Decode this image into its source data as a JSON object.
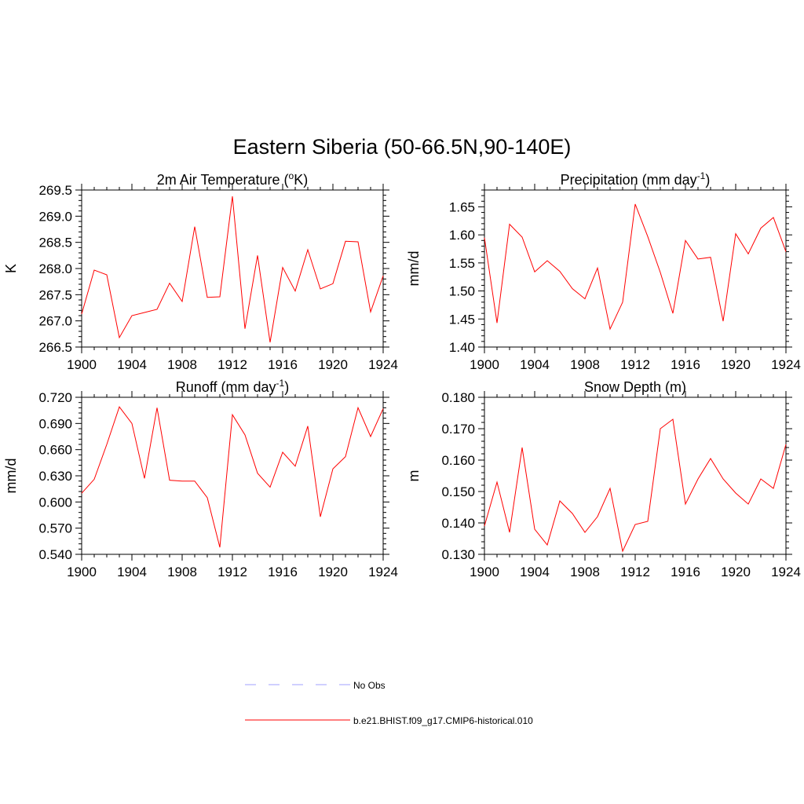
{
  "title": "Eastern Siberia (50-66.5N,90-140E)",
  "colors": {
    "model": "#ff0000",
    "obs": "#a0a0ff"
  },
  "legend": [
    {
      "label": "No Obs",
      "style": "dashed",
      "color": "#a0a0ff"
    },
    {
      "label": "b.e21.BHIST.f09_g17.CMIP6-historical.010",
      "style": "solid",
      "color": "#ff0000"
    }
  ],
  "chart_data": [
    {
      "type": "line",
      "title_main": "2m Air Temperature (",
      "title_sup": "o",
      "title_end": "K)",
      "ylabel": "K",
      "xlim": [
        1900,
        1924
      ],
      "ylim": [
        266.5,
        269.5
      ],
      "xticks": [
        "1900",
        "1904",
        "1908",
        "1912",
        "1916",
        "1920",
        "1924"
      ],
      "yticks": [
        "266.5",
        "267.0",
        "267.5",
        "268.0",
        "268.5",
        "269.0",
        "269.5"
      ],
      "series": [
        {
          "x": [
            1900,
            1901,
            1902,
            1903,
            1904,
            1905,
            1906,
            1907,
            1908,
            1909,
            1910,
            1911,
            1912,
            1913,
            1914,
            1915,
            1916,
            1917,
            1918,
            1919,
            1920,
            1921,
            1922,
            1923,
            1924
          ],
          "values": [
            267.13,
            267.97,
            267.88,
            266.68,
            267.1,
            267.16,
            267.22,
            267.72,
            267.37,
            268.8,
            267.45,
            267.46,
            269.38,
            266.85,
            268.25,
            266.59,
            268.02,
            267.57,
            268.36,
            267.61,
            267.71,
            268.52,
            268.51,
            267.17,
            267.86
          ]
        }
      ]
    },
    {
      "type": "line",
      "title_main": "Precipitation (mm day",
      "title_sup": "-1",
      "title_end": ")",
      "ylabel": "mm/d",
      "xlim": [
        1900,
        1924
      ],
      "ylim": [
        1.4,
        1.68
      ],
      "xticks": [
        "1900",
        "1904",
        "1908",
        "1912",
        "1916",
        "1920",
        "1924"
      ],
      "yticks": [
        "1.40",
        "1.45",
        "1.50",
        "1.55",
        "1.60",
        "1.65"
      ],
      "series": [
        {
          "x": [
            1900,
            1901,
            1902,
            1903,
            1904,
            1905,
            1906,
            1907,
            1908,
            1909,
            1910,
            1911,
            1912,
            1913,
            1914,
            1915,
            1916,
            1917,
            1918,
            1919,
            1920,
            1921,
            1922,
            1923,
            1924
          ],
          "values": [
            1.595,
            1.443,
            1.619,
            1.596,
            1.534,
            1.554,
            1.535,
            1.504,
            1.486,
            1.541,
            1.432,
            1.48,
            1.655,
            1.597,
            1.533,
            1.46,
            1.59,
            1.557,
            1.56,
            1.446,
            1.602,
            1.566,
            1.612,
            1.631,
            1.57
          ]
        }
      ]
    },
    {
      "type": "line",
      "title_main": "Runoff (mm day",
      "title_sup": "-1",
      "title_end": ")",
      "ylabel": "mm/d",
      "xlim": [
        1900,
        1924
      ],
      "ylim": [
        0.54,
        0.72
      ],
      "xticks": [
        "1900",
        "1904",
        "1908",
        "1912",
        "1916",
        "1920",
        "1924"
      ],
      "yticks": [
        "0.540",
        "0.570",
        "0.600",
        "0.630",
        "0.660",
        "0.690",
        "0.720"
      ],
      "series": [
        {
          "x": [
            1900,
            1901,
            1902,
            1903,
            1904,
            1905,
            1906,
            1907,
            1908,
            1909,
            1910,
            1911,
            1912,
            1913,
            1914,
            1915,
            1916,
            1917,
            1918,
            1919,
            1920,
            1921,
            1922,
            1923,
            1924
          ],
          "values": [
            0.61,
            0.626,
            0.666,
            0.709,
            0.69,
            0.627,
            0.708,
            0.625,
            0.624,
            0.624,
            0.605,
            0.548,
            0.7,
            0.677,
            0.633,
            0.617,
            0.657,
            0.641,
            0.687,
            0.583,
            0.638,
            0.652,
            0.708,
            0.675,
            0.707
          ]
        }
      ]
    },
    {
      "type": "line",
      "title_main": "Snow Depth (m)",
      "title_sup": "",
      "title_end": "",
      "ylabel": "m",
      "xlim": [
        1900,
        1924
      ],
      "ylim": [
        0.13,
        0.18
      ],
      "xticks": [
        "1900",
        "1904",
        "1908",
        "1912",
        "1916",
        "1920",
        "1924"
      ],
      "yticks": [
        "0.130",
        "0.140",
        "0.150",
        "0.160",
        "0.170",
        "0.180"
      ],
      "series": [
        {
          "x": [
            1900,
            1901,
            1902,
            1903,
            1904,
            1905,
            1906,
            1907,
            1908,
            1909,
            1910,
            1911,
            1912,
            1913,
            1914,
            1915,
            1916,
            1917,
            1918,
            1919,
            1920,
            1921,
            1922,
            1923,
            1924
          ],
          "values": [
            0.139,
            0.153,
            0.137,
            0.164,
            0.138,
            0.133,
            0.147,
            0.143,
            0.137,
            0.142,
            0.151,
            0.131,
            0.1395,
            0.1405,
            0.17,
            0.173,
            0.146,
            0.154,
            0.1605,
            0.154,
            0.1495,
            0.146,
            0.154,
            0.151,
            0.165
          ]
        }
      ]
    }
  ]
}
